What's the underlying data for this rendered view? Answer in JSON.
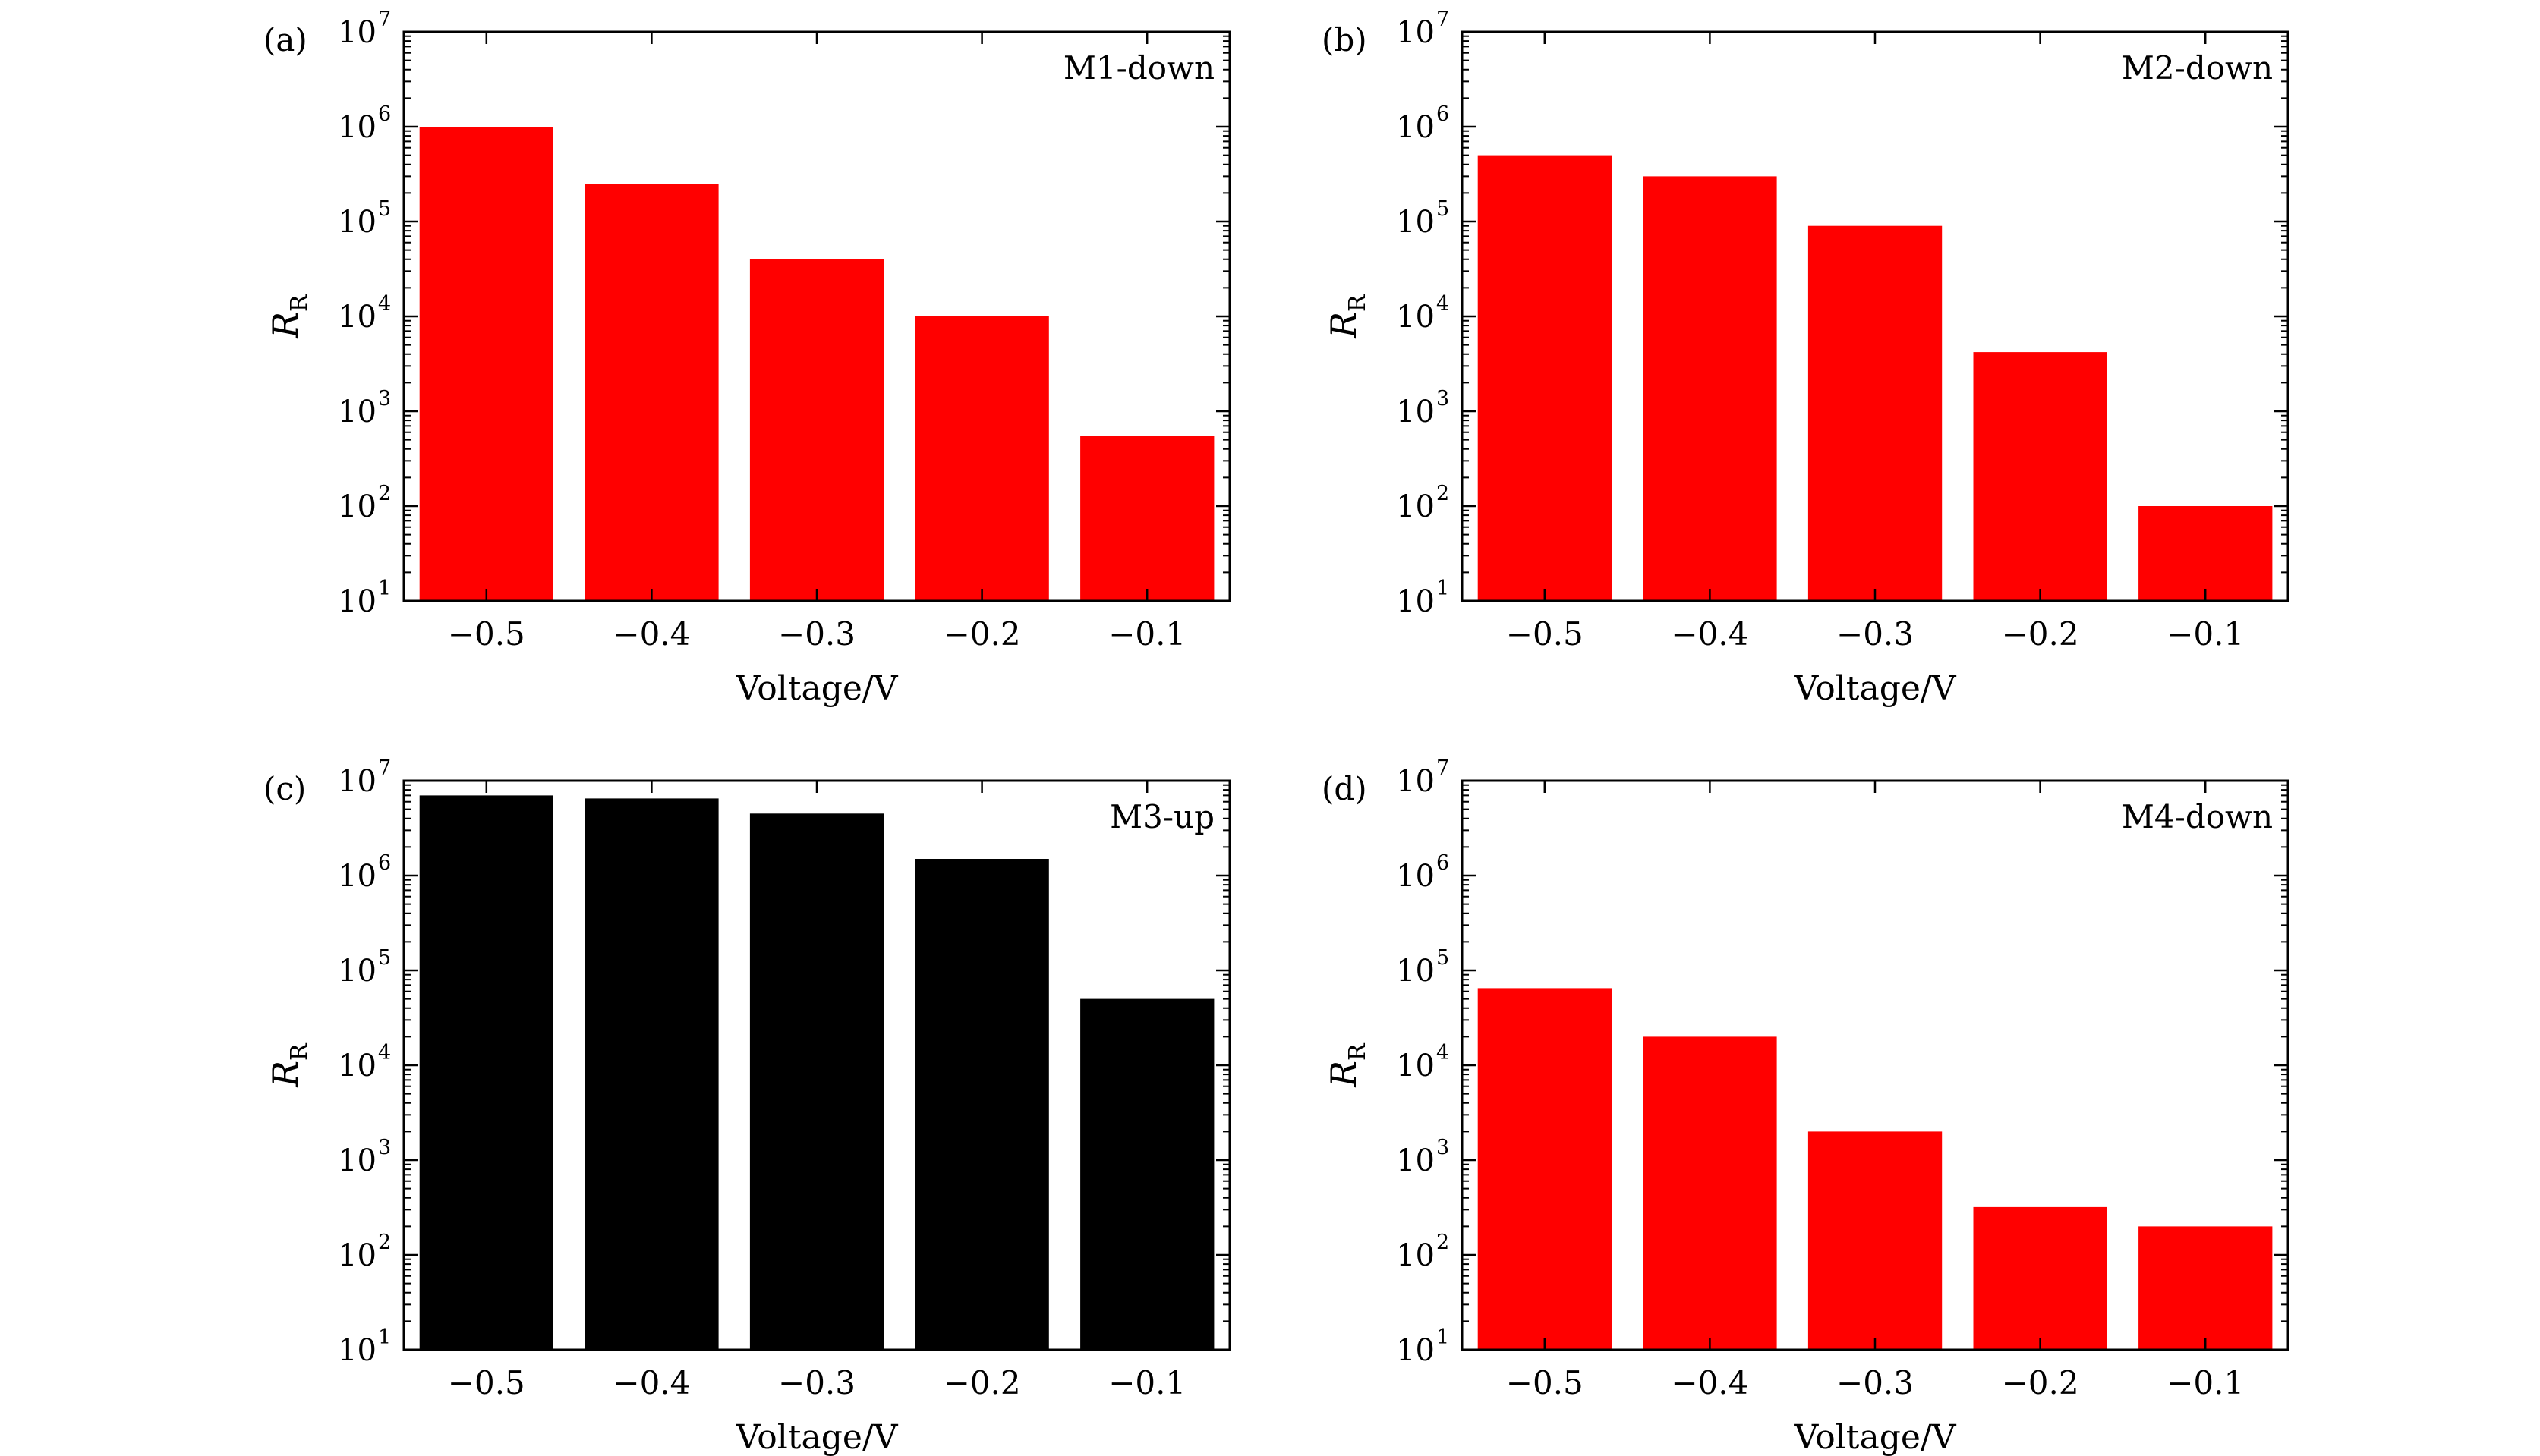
{
  "chart_data": [
    {
      "panel_label": "(a)",
      "type": "bar",
      "title": "M1-down",
      "categories": [
        "−0.5",
        "−0.4",
        "−0.3",
        "−0.2",
        "−0.1"
      ],
      "values": [
        1000000,
        250000,
        40000,
        10000,
        550
      ],
      "bar_color": "#ff0000",
      "xlabel": "Voltage/V",
      "ylabel_main": "R",
      "ylabel_sub": "R",
      "yscale": "log",
      "ylim": [
        10,
        10000000
      ],
      "ytick_exponents": [
        "1",
        "2",
        "3",
        "4",
        "5",
        "6",
        "7"
      ]
    },
    {
      "panel_label": "(b)",
      "type": "bar",
      "title": "M2-down",
      "categories": [
        "−0.5",
        "−0.4",
        "−0.3",
        "−0.2",
        "−0.1"
      ],
      "values": [
        500000,
        300000,
        90000,
        4200,
        100
      ],
      "bar_color": "#ff0000",
      "xlabel": "Voltage/V",
      "ylabel_main": "R",
      "ylabel_sub": "R",
      "yscale": "log",
      "ylim": [
        10,
        10000000
      ],
      "ytick_exponents": [
        "1",
        "2",
        "3",
        "4",
        "5",
        "6",
        "7"
      ]
    },
    {
      "panel_label": "(c)",
      "type": "bar",
      "title": "M3-up",
      "categories": [
        "−0.5",
        "−0.4",
        "−0.3",
        "−0.2",
        "−0.1"
      ],
      "values": [
        7000000,
        6500000,
        4500000,
        1500000,
        50000
      ],
      "bar_color": "#000000",
      "xlabel": "Voltage/V",
      "ylabel_main": "R",
      "ylabel_sub": "R",
      "yscale": "log",
      "ylim": [
        10,
        10000000
      ],
      "ytick_exponents": [
        "1",
        "2",
        "3",
        "4",
        "5",
        "6",
        "7"
      ]
    },
    {
      "panel_label": "(d)",
      "type": "bar",
      "title": "M4-down",
      "categories": [
        "−0.5",
        "−0.4",
        "−0.3",
        "−0.2",
        "−0.1"
      ],
      "values": [
        65000,
        20000,
        2000,
        320,
        200
      ],
      "bar_color": "#ff0000",
      "xlabel": "Voltage/V",
      "ylabel_main": "R",
      "ylabel_sub": "R",
      "yscale": "log",
      "ylim": [
        10,
        10000000
      ],
      "ytick_exponents": [
        "1",
        "2",
        "3",
        "4",
        "5",
        "6",
        "7"
      ]
    }
  ],
  "ytick_base": "10",
  "axis_color": "#000000"
}
